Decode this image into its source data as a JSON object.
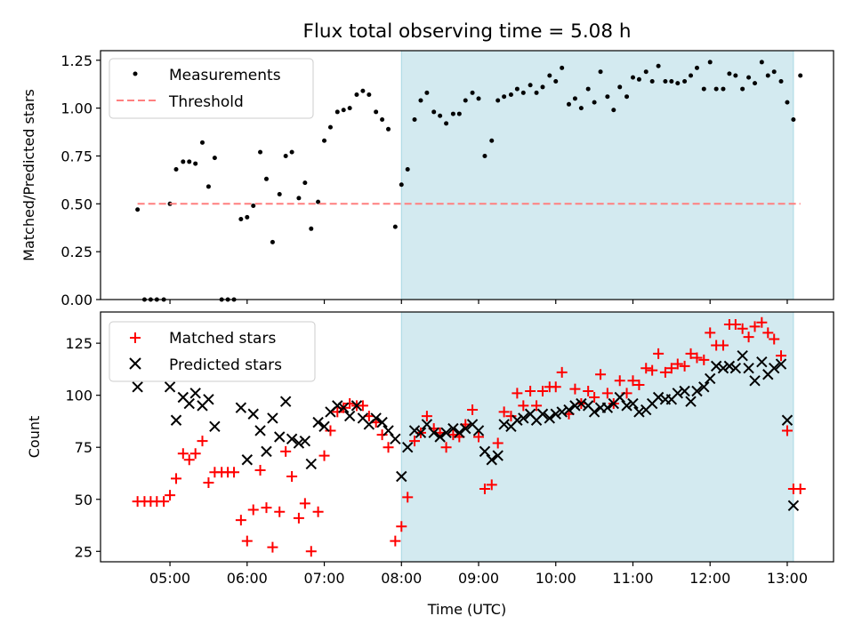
{
  "figure": {
    "title": "Flux total observing time = 5.08 h",
    "xlabel": "Time (UTC)",
    "x_ticks": [
      "05:00",
      "06:00",
      "07:00",
      "08:00",
      "09:00",
      "10:00",
      "11:00",
      "12:00",
      "13:00"
    ],
    "x_range_hours": [
      4.1,
      13.6
    ],
    "highlight_span_hours": [
      8.0,
      13.08
    ],
    "highlight_color": "#d3eaf0",
    "highlight_edge_color": "#a8d8e4"
  },
  "chart_data": [
    {
      "type": "scatter",
      "ylabel": "Matched/Predicted stars",
      "ylim": [
        0.0,
        1.3
      ],
      "y_ticks": [
        "0.00",
        "0.25",
        "0.50",
        "0.75",
        "1.00",
        "1.25"
      ],
      "y_tick_values": [
        0.0,
        0.25,
        0.5,
        0.75,
        1.0,
        1.25
      ],
      "legend_placement": "top-left",
      "grid": false,
      "series": [
        {
          "name": "Measurements",
          "marker": "dot",
          "color": "#000000",
          "x": [
            4.58,
            4.67,
            4.75,
            4.83,
            4.92,
            5.0,
            5.08,
            5.17,
            5.25,
            5.33,
            5.42,
            5.5,
            5.58,
            5.67,
            5.75,
            5.83,
            5.92,
            6.0,
            6.08,
            6.17,
            6.25,
            6.33,
            6.42,
            6.5,
            6.58,
            6.67,
            6.75,
            6.83,
            6.92,
            7.0,
            7.08,
            7.17,
            7.25,
            7.33,
            7.42,
            7.5,
            7.58,
            7.67,
            7.75,
            7.83,
            7.92,
            8.0,
            8.08,
            8.17,
            8.25,
            8.33,
            8.42,
            8.5,
            8.58,
            8.67,
            8.75,
            8.83,
            8.92,
            9.0,
            9.08,
            9.17,
            9.25,
            9.33,
            9.42,
            9.5,
            9.58,
            9.67,
            9.75,
            9.83,
            9.92,
            10.0,
            10.08,
            10.17,
            10.25,
            10.33,
            10.42,
            10.5,
            10.58,
            10.67,
            10.75,
            10.83,
            10.92,
            11.0,
            11.08,
            11.17,
            11.25,
            11.33,
            11.42,
            11.5,
            11.58,
            11.67,
            11.75,
            11.83,
            11.92,
            12.0,
            12.08,
            12.17,
            12.25,
            12.33,
            12.42,
            12.5,
            12.58,
            12.67,
            12.75,
            12.83,
            12.92,
            13.0,
            13.08,
            13.17
          ],
          "y": [
            0.47,
            0.0,
            0.0,
            0.0,
            0.0,
            0.5,
            0.68,
            0.72,
            0.72,
            0.71,
            0.82,
            0.59,
            0.74,
            0.0,
            0.0,
            0.0,
            0.42,
            0.43,
            0.49,
            0.77,
            0.63,
            0.3,
            0.55,
            0.75,
            0.77,
            0.53,
            0.61,
            0.37,
            0.51,
            0.83,
            0.9,
            0.98,
            0.99,
            1.0,
            1.07,
            1.09,
            1.07,
            0.98,
            0.94,
            0.89,
            0.38,
            0.6,
            0.68,
            0.94,
            1.04,
            1.08,
            0.98,
            0.96,
            0.92,
            0.97,
            0.97,
            1.04,
            1.08,
            1.05,
            0.75,
            0.83,
            1.04,
            1.06,
            1.07,
            1.1,
            1.08,
            1.12,
            1.08,
            1.11,
            1.17,
            1.14,
            1.21,
            1.02,
            1.05,
            1.0,
            1.1,
            1.03,
            1.19,
            1.06,
            0.99,
            1.11,
            1.06,
            1.16,
            1.15,
            1.19,
            1.14,
            1.22,
            1.14,
            1.14,
            1.13,
            1.14,
            1.17,
            1.21,
            1.1,
            1.24,
            1.1,
            1.1,
            1.18,
            1.17,
            1.1,
            1.16,
            1.13,
            1.24,
            1.17,
            1.19,
            1.14,
            1.03,
            0.94,
            1.17
          ]
        },
        {
          "name": "Threshold",
          "marker": "dashed-line",
          "color": "#ff7f7f",
          "x": [
            4.58,
            13.17
          ],
          "y": [
            0.5,
            0.5
          ]
        }
      ]
    },
    {
      "type": "scatter",
      "ylabel": "Count",
      "ylim": [
        20,
        140
      ],
      "y_ticks": [
        "25",
        "50",
        "75",
        "100",
        "125"
      ],
      "y_tick_values": [
        25,
        50,
        75,
        100,
        125
      ],
      "legend_placement": "top-left",
      "grid": false,
      "series": [
        {
          "name": "Matched stars",
          "marker": "plus",
          "color": "#ff0000",
          "x": [
            4.58,
            4.67,
            4.75,
            4.83,
            4.92,
            5.0,
            5.08,
            5.17,
            5.25,
            5.33,
            5.42,
            5.5,
            5.58,
            5.67,
            5.75,
            5.83,
            5.92,
            6.0,
            6.08,
            6.17,
            6.25,
            6.33,
            6.42,
            6.5,
            6.58,
            6.67,
            6.75,
            6.83,
            6.92,
            7.0,
            7.08,
            7.17,
            7.25,
            7.33,
            7.42,
            7.5,
            7.58,
            7.67,
            7.75,
            7.83,
            7.92,
            8.0,
            8.08,
            8.17,
            8.25,
            8.33,
            8.42,
            8.5,
            8.58,
            8.67,
            8.75,
            8.83,
            8.92,
            9.0,
            9.08,
            9.17,
            9.25,
            9.33,
            9.42,
            9.5,
            9.58,
            9.67,
            9.75,
            9.83,
            9.92,
            10.0,
            10.08,
            10.17,
            10.25,
            10.33,
            10.42,
            10.5,
            10.58,
            10.67,
            10.75,
            10.83,
            10.92,
            11.0,
            11.08,
            11.17,
            11.25,
            11.33,
            11.42,
            11.5,
            11.58,
            11.67,
            11.75,
            11.83,
            11.92,
            12.0,
            12.08,
            12.17,
            12.25,
            12.33,
            12.42,
            12.5,
            12.58,
            12.67,
            12.75,
            12.83,
            12.92,
            13.0,
            13.08,
            13.17
          ],
          "y": [
            49,
            49,
            49,
            49,
            49,
            52,
            60,
            72,
            69,
            72,
            78,
            58,
            63,
            63,
            63,
            63,
            40,
            30,
            45,
            64,
            46,
            27,
            44,
            73,
            61,
            41,
            48,
            25,
            44,
            71,
            83,
            92,
            94,
            96,
            95,
            95,
            90,
            87,
            81,
            75,
            30,
            37,
            51,
            78,
            82,
            90,
            84,
            82,
            75,
            81,
            80,
            86,
            93,
            80,
            55,
            57,
            77,
            92,
            90,
            101,
            95,
            102,
            95,
            102,
            104,
            104,
            111,
            91,
            103,
            96,
            102,
            99,
            110,
            101,
            96,
            107,
            101,
            107,
            105,
            113,
            112,
            120,
            111,
            113,
            115,
            114,
            120,
            118,
            117,
            130,
            124,
            124,
            134,
            134,
            132,
            128,
            133,
            135,
            130,
            127,
            119,
            83,
            55,
            55
          ]
        },
        {
          "name": "Predicted stars",
          "marker": "x",
          "color": "#000000",
          "x": [
            4.58,
            5.0,
            5.08,
            5.17,
            5.25,
            5.33,
            5.42,
            5.5,
            5.58,
            5.92,
            6.0,
            6.08,
            6.17,
            6.25,
            6.33,
            6.42,
            6.5,
            6.58,
            6.67,
            6.75,
            6.83,
            6.92,
            7.0,
            7.08,
            7.17,
            7.25,
            7.33,
            7.42,
            7.5,
            7.58,
            7.67,
            7.75,
            7.83,
            7.92,
            8.0,
            8.08,
            8.17,
            8.25,
            8.33,
            8.42,
            8.5,
            8.58,
            8.67,
            8.75,
            8.83,
            8.92,
            9.0,
            9.08,
            9.17,
            9.25,
            9.33,
            9.42,
            9.5,
            9.58,
            9.67,
            9.75,
            9.83,
            9.92,
            10.0,
            10.08,
            10.17,
            10.25,
            10.33,
            10.42,
            10.5,
            10.58,
            10.67,
            10.75,
            10.83,
            10.92,
            11.0,
            11.08,
            11.17,
            11.25,
            11.33,
            11.42,
            11.5,
            11.58,
            11.67,
            11.75,
            11.83,
            11.92,
            12.0,
            12.08,
            12.17,
            12.25,
            12.33,
            12.42,
            12.5,
            12.58,
            12.67,
            12.75,
            12.83,
            12.92,
            13.0,
            13.08
          ],
          "y": [
            104,
            104,
            88,
            99,
            96,
            101,
            95,
            98,
            85,
            94,
            69,
            91,
            83,
            73,
            89,
            80,
            97,
            79,
            77,
            78,
            67,
            87,
            85,
            92,
            95,
            94,
            90,
            95,
            89,
            86,
            89,
            87,
            83,
            79,
            61,
            75,
            83,
            82,
            86,
            82,
            80,
            82,
            84,
            82,
            84,
            86,
            83,
            73,
            69,
            71,
            86,
            85,
            88,
            89,
            91,
            88,
            91,
            89,
            91,
            92,
            93,
            95,
            96,
            95,
            92,
            94,
            94,
            96,
            99,
            95,
            96,
            92,
            93,
            96,
            99,
            98,
            98,
            101,
            102,
            97,
            102,
            104,
            108,
            114,
            113,
            114,
            113,
            119,
            113,
            107,
            116,
            110,
            113,
            115,
            88,
            47
          ]
        }
      ]
    }
  ]
}
